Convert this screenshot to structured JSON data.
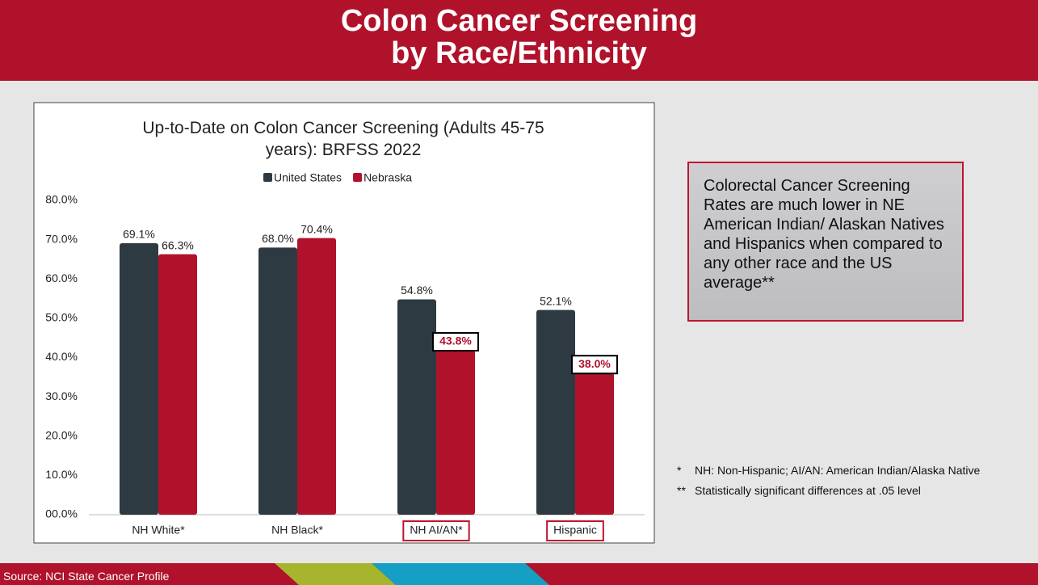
{
  "slide": {
    "title": [
      "Colon Cancer Screening",
      "by Race/Ethnicity"
    ],
    "callout": "Colorectal Cancer Screening Rates are much lower in NE American Indian/ Alaskan Natives and Hispanics when compared to any other race and the US average**",
    "footnotes": [
      {
        "mark": "*",
        "text": "NH: Non-Hispanic; AI/AN: American Indian/Alaska Native"
      },
      {
        "mark": "**",
        "text": "Statistically significant differences at .05 level"
      }
    ],
    "source": "Source: NCI State Cancer Profile"
  },
  "chart_data": {
    "type": "bar",
    "title": [
      "Up-to-Date on Colon Cancer Screening (Adults 45-75",
      "years): BRFSS 2022"
    ],
    "categories": [
      "NH White*",
      "NH Black*",
      "NH AI/AN*",
      "Hispanic"
    ],
    "highlight": [
      false,
      false,
      true,
      true
    ],
    "series": [
      {
        "name": "United States",
        "color": "#2e3a42",
        "values": [
          69.1,
          68.0,
          54.8,
          52.1
        ],
        "value_labels": [
          "69.1%",
          "68.0%",
          "54.8%",
          "52.1%"
        ]
      },
      {
        "name": "Nebraska",
        "color": "#b0122b",
        "values": [
          66.3,
          70.4,
          43.8,
          38.0
        ],
        "value_labels": [
          "66.3%",
          "70.4%",
          "43.8%",
          "38.0%"
        ]
      }
    ],
    "ylim": [
      0,
      80
    ],
    "yticks": [
      {
        "value": 0,
        "label": "00.0%"
      },
      {
        "value": 10,
        "label": "10.0%"
      },
      {
        "value": 20,
        "label": "20.0%"
      },
      {
        "value": 30,
        "label": "30.0%"
      },
      {
        "value": 40,
        "label": "40.0%"
      },
      {
        "value": 50,
        "label": "50.0%"
      },
      {
        "value": 60,
        "label": "60.0%"
      },
      {
        "value": 70,
        "label": "70.0%"
      },
      {
        "value": 80,
        "label": "80.0%"
      }
    ],
    "legend": "top",
    "grid": false
  }
}
